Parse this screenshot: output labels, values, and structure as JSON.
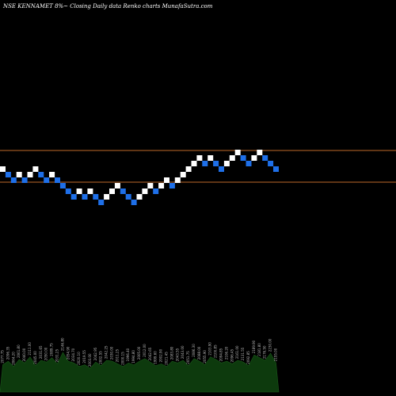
{
  "header": {
    "title": "NSE KENNAMET 8%~  Closing Daily data  Renko  charts MunafaSutra.com"
  },
  "colors": {
    "background": "#000000",
    "up_brick": "#ffffff",
    "down_brick": "#1e6fe8",
    "reference_line": "#c06a2a",
    "volume_fill": "#0d3a0d",
    "volume_stroke": "#1a5a1a"
  },
  "chart_data": {
    "type": "renko",
    "title": "NSE KENNAMET 8%~  Closing Daily data  Renko  charts MunafaSutra.com",
    "bricks": [
      {
        "dir": "up",
        "level": 0
      },
      {
        "dir": "down",
        "level": -1
      },
      {
        "dir": "down",
        "level": -2
      },
      {
        "dir": "up",
        "level": -1
      },
      {
        "dir": "down",
        "level": -2
      },
      {
        "dir": "up",
        "level": -1
      },
      {
        "dir": "up",
        "level": 0
      },
      {
        "dir": "down",
        "level": -1
      },
      {
        "dir": "down",
        "level": -2
      },
      {
        "dir": "up",
        "level": -1
      },
      {
        "dir": "down",
        "level": -2
      },
      {
        "dir": "down",
        "level": -3
      },
      {
        "dir": "down",
        "level": -4
      },
      {
        "dir": "down",
        "level": -5
      },
      {
        "dir": "up",
        "level": -4
      },
      {
        "dir": "down",
        "level": -5
      },
      {
        "dir": "up",
        "level": -4
      },
      {
        "dir": "down",
        "level": -5
      },
      {
        "dir": "down",
        "level": -6
      },
      {
        "dir": "up",
        "level": -5
      },
      {
        "dir": "up",
        "level": -4
      },
      {
        "dir": "up",
        "level": -3
      },
      {
        "dir": "down",
        "level": -4
      },
      {
        "dir": "down",
        "level": -5
      },
      {
        "dir": "down",
        "level": -6
      },
      {
        "dir": "up",
        "level": -5
      },
      {
        "dir": "up",
        "level": -4
      },
      {
        "dir": "up",
        "level": -3
      },
      {
        "dir": "down",
        "level": -4
      },
      {
        "dir": "up",
        "level": -3
      },
      {
        "dir": "up",
        "level": -2
      },
      {
        "dir": "down",
        "level": -3
      },
      {
        "dir": "up",
        "level": -2
      },
      {
        "dir": "up",
        "level": -1
      },
      {
        "dir": "up",
        "level": 0
      },
      {
        "dir": "up",
        "level": 1
      },
      {
        "dir": "up",
        "level": 2
      },
      {
        "dir": "down",
        "level": 1
      },
      {
        "dir": "up",
        "level": 2
      },
      {
        "dir": "down",
        "level": 1
      },
      {
        "dir": "down",
        "level": 0
      },
      {
        "dir": "up",
        "level": 1
      },
      {
        "dir": "up",
        "level": 2
      },
      {
        "dir": "up",
        "level": 3
      },
      {
        "dir": "down",
        "level": 2
      },
      {
        "dir": "down",
        "level": 1
      },
      {
        "dir": "up",
        "level": 2
      },
      {
        "dir": "up",
        "level": 3
      },
      {
        "dir": "down",
        "level": 2
      },
      {
        "dir": "down",
        "level": 1
      },
      {
        "dir": "down",
        "level": 0
      }
    ],
    "reference_levels": [
      4,
      -2
    ],
    "volume": [
      62,
      70,
      58,
      74,
      66,
      80,
      60,
      72,
      68,
      78,
      64,
      90,
      70,
      66,
      58,
      62,
      54,
      68,
      60,
      72,
      70,
      64,
      58,
      66,
      62,
      70,
      76,
      68,
      60,
      64,
      58,
      70,
      66,
      72,
      60,
      76,
      70,
      62,
      80,
      74,
      66,
      70,
      64,
      72,
      68,
      60,
      84,
      78,
      72,
      88,
      66
    ],
    "volume_labels": [
      "2077.75",
      "2096.35",
      "2064.20",
      "2061.80",
      "2040.00",
      "2111.00",
      "2045.00",
      "2031.65",
      "2050.00",
      "2089.75",
      "2031.25",
      "2146.80",
      "2054.90",
      "2034.70",
      "2020.10",
      "2019.55",
      "2003.00",
      "2042.95",
      "2002.55",
      "2042.25",
      "2030.00",
      "2011.25",
      "2000.15",
      "1996.40",
      "1994.80",
      "2005.00",
      "2012.00",
      "2042.65",
      "1999.60",
      "2002.90",
      "2021.45",
      "2083.80",
      "2043.55",
      "2043.00",
      "2051.75",
      "2086.30",
      "2088.00",
      "2055.90",
      "2103.90",
      "2100.85",
      "2094.85",
      "2106.20",
      "2096.45",
      "2161.00",
      "2131.55",
      "2092.85",
      "2189.90",
      "2181.80",
      "2176.50",
      "2230.00",
      "2155.00"
    ]
  }
}
